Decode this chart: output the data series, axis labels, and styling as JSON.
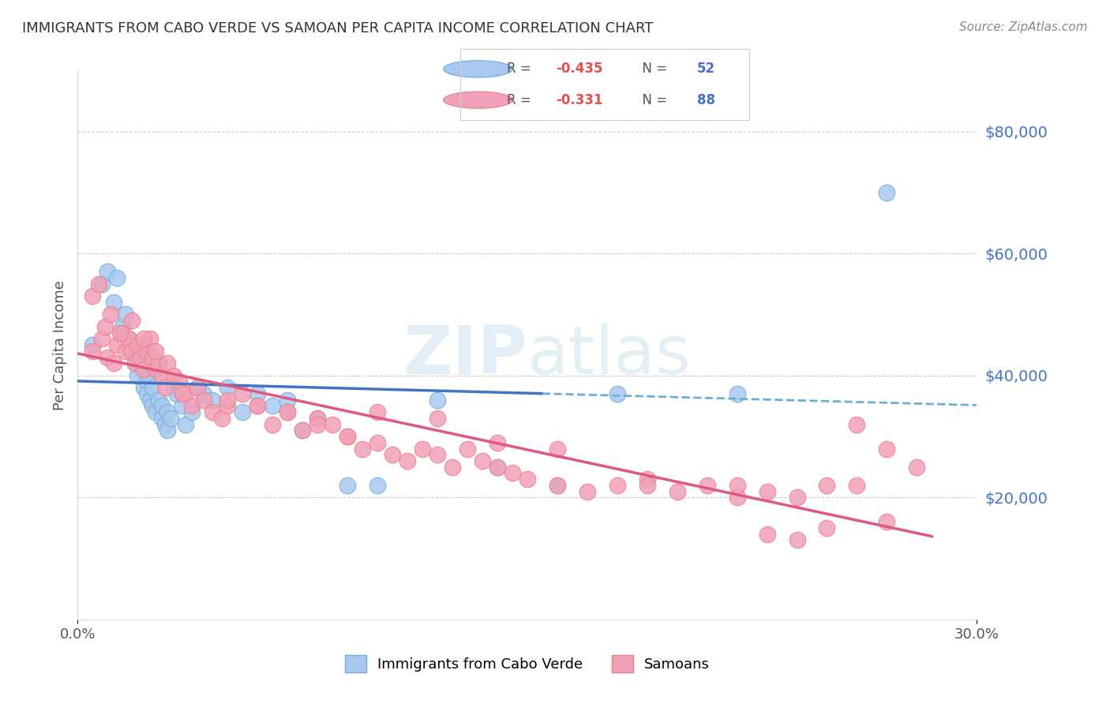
{
  "title": "IMMIGRANTS FROM CABO VERDE VS SAMOAN PER CAPITA INCOME CORRELATION CHART",
  "source": "Source: ZipAtlas.com",
  "ylabel": "Per Capita Income",
  "xlim": [
    0.0,
    0.3
  ],
  "ylim": [
    0,
    90000
  ],
  "yticks_right": [
    20000,
    40000,
    60000,
    80000
  ],
  "ytick_labels_right": [
    "$20,000",
    "$40,000",
    "$60,000",
    "$80,000"
  ],
  "blue_color": "#6baed6",
  "pink_color": "#f08080",
  "blue_scatter_color": "#a8c8f0",
  "pink_scatter_color": "#f0a0b8",
  "grid_color": "#cccccc",
  "cabo_verde_x": [
    0.005,
    0.008,
    0.01,
    0.012,
    0.013,
    0.015,
    0.016,
    0.017,
    0.018,
    0.019,
    0.02,
    0.02,
    0.021,
    0.022,
    0.022,
    0.023,
    0.023,
    0.024,
    0.024,
    0.025,
    0.025,
    0.026,
    0.027,
    0.028,
    0.028,
    0.029,
    0.03,
    0.03,
    0.031,
    0.032,
    0.033,
    0.035,
    0.036,
    0.038,
    0.04,
    0.042,
    0.045,
    0.05,
    0.055,
    0.06,
    0.065,
    0.07,
    0.075,
    0.08,
    0.09,
    0.1,
    0.12,
    0.14,
    0.16,
    0.18,
    0.22,
    0.27
  ],
  "cabo_verde_y": [
    45000,
    55000,
    57000,
    52000,
    56000,
    48000,
    50000,
    46000,
    44000,
    42000,
    43000,
    40000,
    45000,
    38000,
    41000,
    39000,
    37000,
    36000,
    40000,
    35000,
    38000,
    34000,
    36000,
    33000,
    35000,
    32000,
    34000,
    31000,
    33000,
    38000,
    37000,
    35000,
    32000,
    34000,
    38000,
    37000,
    36000,
    38000,
    34000,
    37000,
    35000,
    36000,
    31000,
    33000,
    22000,
    22000,
    36000,
    25000,
    22000,
    37000,
    37000,
    70000
  ],
  "samoan_x": [
    0.005,
    0.008,
    0.01,
    0.012,
    0.013,
    0.015,
    0.016,
    0.017,
    0.018,
    0.019,
    0.02,
    0.021,
    0.022,
    0.023,
    0.024,
    0.025,
    0.026,
    0.027,
    0.028,
    0.029,
    0.03,
    0.032,
    0.034,
    0.036,
    0.038,
    0.04,
    0.042,
    0.045,
    0.048,
    0.05,
    0.055,
    0.06,
    0.065,
    0.07,
    0.075,
    0.08,
    0.085,
    0.09,
    0.095,
    0.1,
    0.105,
    0.11,
    0.115,
    0.12,
    0.125,
    0.13,
    0.135,
    0.14,
    0.145,
    0.15,
    0.16,
    0.17,
    0.18,
    0.19,
    0.2,
    0.21,
    0.22,
    0.23,
    0.24,
    0.25,
    0.005,
    0.007,
    0.009,
    0.011,
    0.014,
    0.018,
    0.022,
    0.026,
    0.035,
    0.05,
    0.06,
    0.07,
    0.08,
    0.09,
    0.1,
    0.12,
    0.14,
    0.16,
    0.19,
    0.22,
    0.23,
    0.24,
    0.25,
    0.26,
    0.27,
    0.28,
    0.26,
    0.27
  ],
  "samoan_y": [
    44000,
    46000,
    43000,
    42000,
    45000,
    47000,
    44000,
    46000,
    44000,
    42000,
    45000,
    43000,
    41000,
    44000,
    46000,
    43000,
    41000,
    42000,
    40000,
    38000,
    42000,
    40000,
    39000,
    37000,
    35000,
    38000,
    36000,
    34000,
    33000,
    35000,
    37000,
    35000,
    32000,
    34000,
    31000,
    33000,
    32000,
    30000,
    28000,
    29000,
    27000,
    26000,
    28000,
    27000,
    25000,
    28000,
    26000,
    25000,
    24000,
    23000,
    22000,
    21000,
    22000,
    23000,
    21000,
    22000,
    20000,
    21000,
    20000,
    22000,
    53000,
    55000,
    48000,
    50000,
    47000,
    49000,
    46000,
    44000,
    37000,
    36000,
    35000,
    34000,
    32000,
    30000,
    34000,
    33000,
    29000,
    28000,
    22000,
    22000,
    14000,
    13000,
    15000,
    22000,
    16000,
    25000,
    32000,
    28000
  ]
}
